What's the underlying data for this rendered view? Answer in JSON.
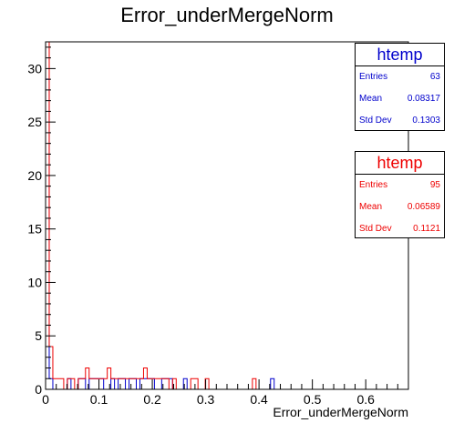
{
  "chart_data": {
    "type": "histogram",
    "title": "Error_underMergeNorm",
    "xlabel": "Error_underMergeNorm",
    "ylabel": "",
    "xlim": [
      0,
      0.68
    ],
    "ylim": [
      0,
      32.5
    ],
    "x_ticks": [
      0,
      0.1,
      0.2,
      0.3,
      0.4,
      0.5,
      0.6
    ],
    "y_ticks": [
      0,
      5,
      10,
      15,
      20,
      25,
      30
    ],
    "grid": false,
    "bin_width": 0.0068,
    "series": [
      {
        "name": "htemp",
        "color": "#0000cc",
        "counts": [
          29,
          1,
          0,
          0,
          0,
          0,
          1,
          0,
          0,
          1,
          1,
          0,
          1,
          1,
          1,
          1,
          0,
          0,
          1,
          0,
          1,
          1,
          0,
          1,
          1,
          0,
          1,
          1,
          1,
          1,
          0,
          0,
          1,
          1,
          1,
          0,
          0,
          0,
          1,
          0,
          0,
          0,
          0,
          0,
          0,
          0,
          0,
          0,
          0,
          0,
          0,
          0,
          0,
          0,
          0,
          0,
          0,
          0,
          0,
          0,
          0,
          0,
          1,
          0,
          0,
          0,
          0,
          0,
          0,
          0,
          0,
          0,
          0,
          0,
          0,
          0,
          0,
          0,
          0,
          0,
          0,
          0,
          0,
          0,
          0,
          0,
          0,
          0,
          0,
          0,
          0,
          0,
          0,
          0,
          0,
          0,
          0,
          0,
          0,
          0
        ]
      },
      {
        "name": "htemp",
        "color": "#ee0000",
        "counts": [
          33,
          4,
          1,
          1,
          1,
          0,
          1,
          1,
          0,
          1,
          1,
          2,
          1,
          1,
          1,
          1,
          1,
          2,
          1,
          1,
          1,
          1,
          1,
          1,
          1,
          1,
          1,
          2,
          1,
          1,
          1,
          1,
          1,
          1,
          0,
          1,
          0,
          0,
          0,
          0,
          1,
          1,
          0,
          0,
          1,
          0,
          0,
          0,
          0,
          0,
          0,
          0,
          0,
          0,
          0,
          0,
          0,
          1,
          0,
          0,
          0,
          0,
          0,
          0,
          0,
          0,
          0,
          0,
          0,
          0,
          0,
          0,
          0,
          0,
          0,
          0,
          0,
          0,
          0,
          0,
          0,
          0,
          0,
          0,
          0,
          0,
          0,
          0,
          0,
          0,
          0,
          0,
          0,
          0,
          0,
          0,
          0,
          0,
          0,
          0
        ]
      }
    ]
  },
  "stats": [
    {
      "name": "htemp",
      "color": "#0000cc",
      "entries_label": "Entries",
      "entries": "63",
      "mean_label": "Mean",
      "mean": "0.08317",
      "std_label": "Std Dev",
      "std": "0.1303"
    },
    {
      "name": "htemp",
      "color": "#ee0000",
      "entries_label": "Entries",
      "entries": "95",
      "mean_label": "Mean",
      "mean": "0.06589",
      "std_label": "Std Dev",
      "std": "0.1121"
    }
  ]
}
